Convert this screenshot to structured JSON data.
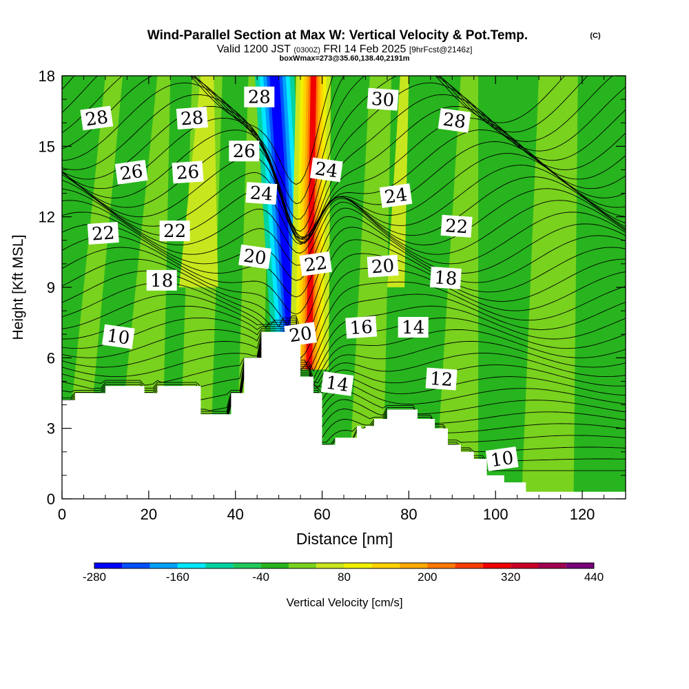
{
  "title": {
    "main": "Wind-Parallel Section at Max W: Vertical Velocity & Pot.Temp.",
    "copyright": "(C)",
    "valid_prefix": "Valid 1200 JST",
    "valid_utc": "(0300Z)",
    "valid_date": "FRI 14 Feb 2025",
    "fcst": "[9hrFcst@2146z]",
    "box": "boxWmax=273@35.60,138.40,2191m"
  },
  "chart_data": {
    "type": "heatmap",
    "xlabel": "Distance [nm]",
    "ylabel": "Height [Kft MSL]",
    "xlim": [
      0,
      130
    ],
    "ylim": [
      0,
      18
    ],
    "x_ticks": [
      "0",
      "20",
      "40",
      "60",
      "80",
      "100",
      "120"
    ],
    "y_ticks": [
      "0",
      "3",
      "6",
      "9",
      "12",
      "15",
      "18"
    ],
    "colorbar": {
      "label": "Vertical Velocity [cm/s]",
      "tick_labels": [
        "-280",
        "-160",
        "-40",
        "80",
        "200",
        "320",
        "440"
      ],
      "levels": [
        -280,
        -240,
        -200,
        -160,
        -120,
        -80,
        -40,
        0,
        40,
        80,
        120,
        160,
        200,
        240,
        280,
        320,
        360,
        400,
        440
      ],
      "colors": [
        "#0000ff",
        "#0050ff",
        "#00a0ff",
        "#00e8ff",
        "#00d2a0",
        "#1ec85a",
        "#28b41e",
        "#78d21e",
        "#c8e61e",
        "#f0f000",
        "#ffd200",
        "#ffaa00",
        "#ff7800",
        "#ff3c00",
        "#f00000",
        "#c80028",
        "#a00050",
        "#780078"
      ]
    },
    "updraft_max": 273,
    "theta_labels": [
      {
        "value": "28",
        "x": 8,
        "y": 16.2
      },
      {
        "value": "28",
        "x": 30,
        "y": 16.2
      },
      {
        "value": "28",
        "x": 45.5,
        "y": 17.1
      },
      {
        "value": "30",
        "x": 74,
        "y": 17.0
      },
      {
        "value": "28",
        "x": 90.5,
        "y": 16.1
      },
      {
        "value": "26",
        "x": 16,
        "y": 13.9
      },
      {
        "value": "26",
        "x": 29,
        "y": 13.9
      },
      {
        "value": "26",
        "x": 42,
        "y": 14.8
      },
      {
        "value": "24",
        "x": 46,
        "y": 13.0
      },
      {
        "value": "24",
        "x": 61,
        "y": 14.0
      },
      {
        "value": "24",
        "x": 77,
        "y": 12.9
      },
      {
        "value": "22",
        "x": 9.5,
        "y": 11.3
      },
      {
        "value": "22",
        "x": 26,
        "y": 11.4
      },
      {
        "value": "22",
        "x": 91,
        "y": 11.6
      },
      {
        "value": "20",
        "x": 44.5,
        "y": 10.3
      },
      {
        "value": "22",
        "x": 58.5,
        "y": 10.0
      },
      {
        "value": "20",
        "x": 74,
        "y": 9.9
      },
      {
        "value": "18",
        "x": 23,
        "y": 9.3
      },
      {
        "value": "18",
        "x": 88.5,
        "y": 9.4
      },
      {
        "value": "10",
        "x": 13,
        "y": 6.9
      },
      {
        "value": "20",
        "x": 55,
        "y": 7.0
      },
      {
        "value": "16",
        "x": 69,
        "y": 7.3
      },
      {
        "value": "14",
        "x": 81,
        "y": 7.3
      },
      {
        "value": "12",
        "x": 87.5,
        "y": 5.1
      },
      {
        "value": "14",
        "x": 63.5,
        "y": 4.9
      },
      {
        "value": "10",
        "x": 101.5,
        "y": 1.7
      }
    ],
    "terrain_kft": [
      [
        0,
        4.2
      ],
      [
        3,
        4.2
      ],
      [
        3,
        4.5
      ],
      [
        5,
        4.5
      ],
      [
        5,
        4.5
      ],
      [
        10,
        4.5
      ],
      [
        10,
        4.8
      ],
      [
        19,
        4.8
      ],
      [
        19,
        4.5
      ],
      [
        22,
        4.5
      ],
      [
        22,
        4.8
      ],
      [
        32,
        4.8
      ],
      [
        32,
        3.6
      ],
      [
        39,
        3.6
      ],
      [
        39,
        4.5
      ],
      [
        42,
        4.5
      ],
      [
        42,
        4.8
      ],
      [
        42,
        4.8
      ],
      [
        42,
        6.0
      ],
      [
        46,
        6.0
      ],
      [
        46,
        7.1
      ],
      [
        55,
        7.1
      ],
      [
        55,
        5.2
      ],
      [
        58,
        5.2
      ],
      [
        58,
        4.5
      ],
      [
        60,
        4.5
      ],
      [
        60,
        2.3
      ],
      [
        63,
        2.3
      ],
      [
        63,
        2.6
      ],
      [
        68,
        2.6
      ],
      [
        68,
        3.1
      ],
      [
        69,
        3.1
      ],
      [
        69,
        3.0
      ],
      [
        70,
        3.0
      ],
      [
        70,
        3.1
      ],
      [
        72,
        3.1
      ],
      [
        72,
        3.4
      ],
      [
        75,
        3.4
      ],
      [
        75,
        3.8
      ],
      [
        82,
        3.8
      ],
      [
        82,
        3.4
      ],
      [
        86,
        3.4
      ],
      [
        86,
        3.0
      ],
      [
        89,
        3.0
      ],
      [
        89,
        2.3
      ],
      [
        92,
        2.3
      ],
      [
        92,
        2.0
      ],
      [
        95,
        2.0
      ],
      [
        95,
        1.7
      ],
      [
        98,
        1.7
      ],
      [
        98,
        1.0
      ],
      [
        102,
        1.0
      ],
      [
        102,
        0.7
      ],
      [
        107,
        0.7
      ],
      [
        107,
        0.3
      ],
      [
        130,
        0.3
      ]
    ]
  }
}
